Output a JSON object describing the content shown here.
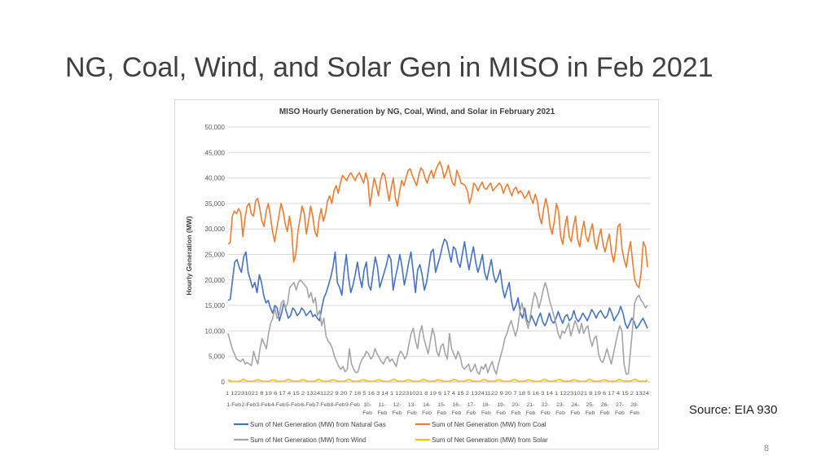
{
  "slide": {
    "title": "NG, Coal, Wind, and Solar Gen in MISO in Feb 2021",
    "source": "Source: EIA 930",
    "page_number": "8"
  },
  "chart_data": {
    "type": "line",
    "title": "MISO Hourly Generation by NG, Coal, Wind, and Solar in February 2021",
    "xlabel": "",
    "ylabel": "Hourly Generation (MW)",
    "ylim": [
      0,
      50000
    ],
    "yticks": [
      0,
      5000,
      10000,
      15000,
      20000,
      25000,
      30000,
      35000,
      40000,
      45000,
      50000
    ],
    "ytick_labels": [
      "0",
      "5,000",
      "10,000",
      "15,000",
      "20,000",
      "25,000",
      "30,000",
      "35,000",
      "40,000",
      "45,000",
      "50,000"
    ],
    "grid": true,
    "legend_position": "bottom",
    "hour_tick_row": "1 12231021 8 19 6 17 4 15 2 13241122 9 20 7 18 5 16 3 14 1 12231021 8 19 6 17 4 15 2 13241122 9 20 7 18 5 16 3 14 1 12231021 8 19 6 17 4 15 2 1324",
    "day_labels_single": [
      "1-Feb",
      "2-Feb",
      "3-Feb",
      "4-Feb",
      "5-Feb",
      "6-Feb",
      "7-Feb",
      "8-Feb",
      "9-Feb"
    ],
    "day_labels_double": [
      [
        "10-",
        "Feb"
      ],
      [
        "11-",
        "Feb"
      ],
      [
        "12-",
        "Feb"
      ],
      [
        "13-",
        "Feb"
      ],
      [
        "14-",
        "Feb"
      ],
      [
        "15-",
        "Feb"
      ],
      [
        "16-",
        "Feb"
      ],
      [
        "17-",
        "Feb"
      ],
      [
        "18-",
        "Feb"
      ],
      [
        "19-",
        "Feb"
      ],
      [
        "20-",
        "Feb"
      ],
      [
        "21-",
        "Feb"
      ],
      [
        "22-",
        "Feb"
      ],
      [
        "23-",
        "Feb"
      ],
      [
        "24-",
        "Feb"
      ],
      [
        "25-",
        "Feb"
      ],
      [
        "26-",
        "Feb"
      ],
      [
        "27-",
        "Feb"
      ],
      [
        "28-",
        "Feb"
      ]
    ],
    "series": [
      {
        "name": "Sum of Net Generation (MW) from Natural Gas",
        "color": "#4472c4",
        "daily_approx": [
          21000,
          21500,
          18500,
          13500,
          14000,
          13500,
          14000,
          20000,
          21000,
          20500,
          22000,
          22500,
          23000,
          22000,
          24000,
          26000,
          24000,
          22500,
          19500,
          16000,
          14000,
          13000,
          12000,
          12000,
          12500,
          13000,
          13500,
          11000
        ],
        "values": [
          16000,
          16200,
          20000,
          23500,
          24000,
          22500,
          21500,
          24500,
          25500,
          21500,
          20000,
          18500,
          19500,
          17500,
          21000,
          19500,
          17000,
          15500,
          16000,
          14500,
          13500,
          15000,
          14500,
          12000,
          13500,
          15500,
          14000,
          12500,
          13000,
          14500,
          14000,
          13000,
          13500,
          14500,
          14000,
          13000,
          13500,
          14000,
          12800,
          13200,
          12500,
          12000,
          14500,
          16500,
          17500,
          19000,
          20500,
          22500,
          25500,
          19500,
          18500,
          17000,
          21500,
          25000,
          20500,
          17500,
          19000,
          21000,
          23500,
          20500,
          18500,
          22000,
          23500,
          19000,
          18000,
          21500,
          24500,
          22500,
          18500,
          20000,
          21500,
          23000,
          25000,
          24000,
          18000,
          20500,
          22500,
          25000,
          22500,
          19000,
          21000,
          23500,
          25500,
          21500,
          17500,
          22000,
          23000,
          21000,
          18000,
          19500,
          22500,
          25500,
          26000,
          21500,
          23000,
          24500,
          26500,
          28000,
          27500,
          25500,
          23500,
          26500,
          26000,
          23500,
          22500,
          25000,
          27500,
          24500,
          22000,
          24500,
          26500,
          23500,
          21500,
          23000,
          25000,
          21500,
          20000,
          22000,
          24000,
          21000,
          19500,
          20500,
          22000,
          18500,
          16500,
          18000,
          19500,
          16000,
          14000,
          15000,
          16500,
          13500,
          12500,
          14500,
          12000,
          11500,
          13000,
          12000,
          11000,
          12500,
          13500,
          11800,
          11000,
          12000,
          13500,
          12000,
          11500,
          12500,
          13800,
          12500,
          11500,
          12800,
          13200,
          12000,
          12500,
          14000,
          12500,
          11800,
          12500,
          13500,
          12800,
          12000,
          13000,
          14200,
          13500,
          12500,
          13500,
          14000,
          13200,
          12500,
          13000,
          14500,
          13500,
          12000,
          12800,
          13500,
          14800,
          13500,
          11500,
          10500,
          11500,
          12500,
          11800,
          10500,
          11000,
          11800,
          12500,
          11500,
          10500
        ]
      },
      {
        "name": "Sum of Net Generation (MW) from Coal",
        "color": "#ed7d31",
        "daily_approx": [
          33500,
          33500,
          33000,
          30000,
          30500,
          35000,
          39500,
          40000,
          38500,
          38500,
          39500,
          40500,
          41500,
          41500,
          40000,
          38500,
          38000,
          38000,
          37500,
          36500,
          33000,
          29500,
          30000,
          29000,
          29000,
          28000,
          27500,
          24000
        ],
        "values": [
          27000,
          27300,
          32500,
          33500,
          33000,
          34000,
          33200,
          28500,
          32000,
          34500,
          35000,
          33000,
          32500,
          35500,
          36000,
          34000,
          31500,
          30500,
          33500,
          35000,
          32500,
          29500,
          27500,
          30000,
          32500,
          35000,
          33500,
          31000,
          29500,
          32500,
          30000,
          23500,
          25000,
          29500,
          32000,
          34500,
          33000,
          29000,
          31500,
          34500,
          32500,
          29500,
          28500,
          32000,
          34000,
          31500,
          33000,
          35500,
          36500,
          35000,
          37500,
          38500,
          37000,
          39000,
          40500,
          40000,
          39500,
          40500,
          41000,
          40200,
          39500,
          40500,
          41000,
          40000,
          39000,
          41000,
          39500,
          34500,
          37500,
          40000,
          38500,
          36500,
          39500,
          41000,
          40500,
          38000,
          35500,
          38000,
          40000,
          36000,
          34500,
          37500,
          39500,
          38500,
          40000,
          41500,
          41800,
          40500,
          39500,
          38500,
          40500,
          42000,
          41500,
          40000,
          39000,
          40500,
          41500,
          40000,
          41500,
          42500,
          43200,
          42000,
          40000,
          41000,
          42500,
          40500,
          39000,
          38500,
          41500,
          40500,
          39000,
          38800,
          38500,
          37500,
          35000,
          36500,
          39000,
          38500,
          37500,
          38500,
          39200,
          38000,
          37800,
          38500,
          39000,
          37500,
          38000,
          38500,
          39000,
          38500,
          37000,
          38200,
          38800,
          37500,
          36500,
          37800,
          38200,
          37000,
          37500,
          37000,
          36000,
          36500,
          37500,
          36000,
          35000,
          36800,
          35500,
          32500,
          31000,
          34000,
          36000,
          34000,
          30500,
          29000,
          31500,
          35000,
          33500,
          28500,
          27000,
          30500,
          32500,
          28500,
          27500,
          30500,
          32500,
          28000,
          26500,
          29500,
          31500,
          28500,
          27500,
          29500,
          31000,
          27500,
          26000,
          28500,
          30000,
          27000,
          25500,
          27500,
          29000,
          25500,
          23500,
          26000,
          30500,
          31000,
          26000,
          24000,
          22500,
          25500,
          27500,
          23500,
          20000,
          19000,
          18500,
          21500,
          27500,
          26500,
          22500
        ]
      },
      {
        "name": "Sum of Net Generation (MW) from Wind",
        "color": "#a5a5a5",
        "daily_approx": [
          6000,
          4000,
          7500,
          14000,
          18500,
          17500,
          12000,
          4000,
          2500,
          5000,
          5000,
          4500,
          7500,
          8500,
          7000,
          6000,
          3000,
          2500,
          4500,
          10000,
          12000,
          16500,
          10000,
          10500,
          10500,
          9500,
          10000,
          15500
        ],
        "values": [
          9500,
          8000,
          6500,
          5500,
          4500,
          4200,
          4000,
          4500,
          3500,
          3800,
          3500,
          3200,
          6000,
          4500,
          3500,
          6500,
          8500,
          7500,
          6500,
          9500,
          11500,
          12500,
          14500,
          12500,
          13000,
          15500,
          16000,
          14500,
          15500,
          18500,
          19000,
          19500,
          18000,
          19500,
          20000,
          19500,
          19000,
          18500,
          16500,
          17500,
          15500,
          16500,
          13000,
          14000,
          11000,
          12500,
          9000,
          8000,
          7500,
          6500,
          5000,
          4000,
          3000,
          2500,
          3000,
          2000,
          2500,
          6500,
          3500,
          2500,
          1800,
          2000,
          3500,
          4500,
          5000,
          6000,
          5500,
          4500,
          5000,
          6500,
          5500,
          4800,
          4000,
          3500,
          4500,
          5000,
          4000,
          4500,
          3800,
          3000,
          5000,
          6000,
          5500,
          4500,
          5200,
          7500,
          9500,
          10500,
          8000,
          6500,
          9500,
          11000,
          8500,
          7000,
          5500,
          8000,
          10500,
          9000,
          6000,
          5000,
          7000,
          7500,
          5500,
          4500,
          9500,
          6500,
          5500,
          4500,
          6000,
          5000,
          3000,
          2500,
          3000,
          3500,
          2000,
          2500,
          3500,
          2000,
          1500,
          3000,
          2500,
          3500,
          1800,
          3000,
          4000,
          2500,
          1500,
          3500,
          5000,
          6500,
          8500,
          9500,
          11000,
          12000,
          10500,
          9000,
          10500,
          13500,
          15500,
          13500,
          12000,
          10500,
          13000,
          15500,
          17500,
          16500,
          14500,
          16000,
          18000,
          19500,
          18000,
          16000,
          14500,
          13000,
          11500,
          9500,
          8500,
          10000,
          9500,
          10500,
          11500,
          9000,
          10500,
          12000,
          11000,
          9500,
          11500,
          9500,
          10500,
          11000,
          8500,
          7000,
          8500,
          9000,
          5500,
          4200,
          3800,
          5000,
          6500,
          5000,
          3500,
          5500,
          7500,
          9500,
          11000,
          10000,
          3500,
          1500,
          1600,
          6000,
          10500,
          15500,
          16500,
          17000,
          16000,
          15500,
          14500,
          15000
        ]
      },
      {
        "name": "Sum of Net Generation (MW) from Solar",
        "color": "#ffc000",
        "daily_approx": [
          250,
          350,
          300,
          300,
          350,
          300,
          350,
          300,
          350,
          300,
          300,
          350,
          300,
          350,
          300,
          350,
          300,
          350,
          300,
          350,
          300,
          350,
          350,
          300,
          350,
          300,
          350,
          350
        ],
        "peak_mw": 500
      }
    ]
  }
}
